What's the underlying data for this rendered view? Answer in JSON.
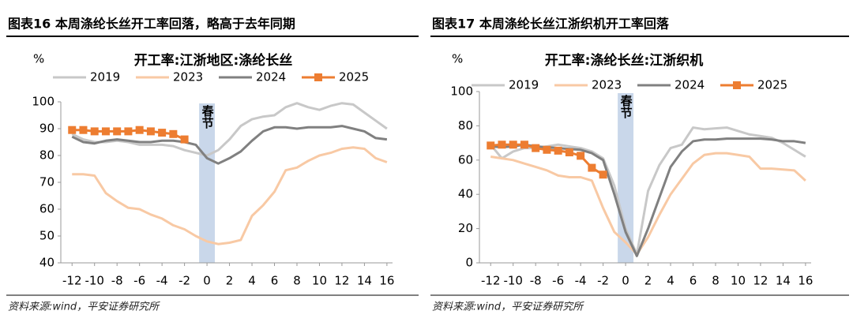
{
  "chart_data": [
    {
      "type": "line",
      "figure_title": "图表16   本周涤纶长丝开工率回落，略高于去年同期",
      "title": "开工率:江浙地区:涤纶长丝",
      "ylabel": "%",
      "source": "资料来源:wind，平安证券研究所",
      "annotation": {
        "text": "春节",
        "x": 0
      },
      "x": [
        -12,
        -11,
        -10,
        -9,
        -8,
        -7,
        -6,
        -5,
        -4,
        -3,
        -2,
        -1,
        0,
        1,
        2,
        3,
        4,
        5,
        6,
        7,
        8,
        9,
        10,
        11,
        12,
        13,
        14,
        15,
        16
      ],
      "xlim": [
        -13,
        16.5
      ],
      "xticks": [
        -12,
        -10,
        -8,
        -6,
        -4,
        -2,
        0,
        2,
        4,
        6,
        8,
        10,
        12,
        14,
        16
      ],
      "ylim": [
        40,
        100
      ],
      "yticks": [
        40,
        50,
        60,
        70,
        80,
        90,
        100
      ],
      "legend": "top",
      "series": [
        {
          "name": "2019",
          "color": "#c8c8c8",
          "values": [
            88,
            86,
            85,
            85,
            85.5,
            85,
            84,
            84,
            84,
            83.5,
            82,
            81,
            80,
            82,
            86,
            91,
            93.5,
            94.5,
            95,
            98,
            99.5,
            98,
            97,
            98.5,
            99.5,
            99,
            96,
            93,
            90
          ]
        },
        {
          "name": "2023",
          "color": "#f8c9a4",
          "values": [
            73,
            73,
            72.5,
            66,
            63,
            60.5,
            60,
            58,
            56.5,
            54,
            52.5,
            50,
            48,
            47,
            47.5,
            48.5,
            57.5,
            61.5,
            66.5,
            74.5,
            75.5,
            78,
            80,
            81,
            82.5,
            83,
            82.5,
            79,
            77.5
          ]
        },
        {
          "name": "2024",
          "color": "#808080",
          "values": [
            87,
            85,
            84.5,
            85.5,
            86,
            85.5,
            85,
            85,
            85.5,
            85.5,
            85,
            84,
            79,
            77,
            79,
            81.5,
            85.5,
            89,
            90.5,
            90.5,
            90,
            90.5,
            90.5,
            90.5,
            91,
            90,
            89,
            86.5,
            86
          ]
        },
        {
          "name": "2025",
          "color": "#ed7d31",
          "marker": "square",
          "values": [
            89.5,
            89.5,
            89,
            89,
            89,
            89,
            89.5,
            89,
            88.5,
            88,
            86,
            null,
            null,
            null,
            null,
            null,
            null,
            null,
            null,
            null,
            null,
            null,
            null,
            null,
            null,
            null,
            null,
            null,
            null
          ]
        }
      ]
    },
    {
      "type": "line",
      "figure_title": "图表17   本周涤纶长丝江浙织机开工率回落",
      "title": "开工率:涤纶长丝:江浙织机",
      "ylabel": "%",
      "source": "资料来源:wind，平安证券研究所",
      "annotation": {
        "text": "春节",
        "x": 0
      },
      "x": [
        -12,
        -11,
        -10,
        -9,
        -8,
        -7,
        -6,
        -5,
        -4,
        -3,
        -2,
        -1,
        0,
        1,
        2,
        3,
        4,
        5,
        6,
        7,
        8,
        9,
        10,
        11,
        12,
        13,
        14,
        15,
        16
      ],
      "xlim": [
        -13,
        16.5
      ],
      "xticks": [
        -12,
        -10,
        -8,
        -6,
        -4,
        -2,
        0,
        2,
        4,
        6,
        8,
        10,
        12,
        14,
        16
      ],
      "ylim": [
        0,
        100
      ],
      "yticks": [
        0,
        20,
        40,
        60,
        80,
        100
      ],
      "legend": "top",
      "series": [
        {
          "name": "2019",
          "color": "#c8c8c8",
          "values": [
            69,
            61,
            65,
            67,
            67,
            68,
            69,
            68,
            67,
            65,
            61,
            45,
            20,
            5,
            42,
            57,
            67,
            69,
            79,
            78,
            78.5,
            79,
            77,
            75,
            74,
            73,
            70,
            66,
            62
          ]
        },
        {
          "name": "2023",
          "color": "#f8c9a4",
          "values": [
            62,
            61,
            60,
            58,
            56,
            54,
            51,
            50,
            50,
            48,
            32,
            18,
            12,
            5,
            15,
            28,
            40,
            49,
            58,
            63,
            64,
            64,
            63,
            62,
            55,
            55,
            54.5,
            54,
            48
          ]
        },
        {
          "name": "2024",
          "color": "#808080",
          "values": [
            68,
            67.5,
            68,
            69,
            68,
            67.5,
            67,
            66.5,
            66,
            64,
            60,
            40,
            18,
            4,
            20,
            38,
            56,
            65,
            71,
            72,
            72,
            72.5,
            72.5,
            72.5,
            72.5,
            72,
            71,
            71,
            70
          ]
        },
        {
          "name": "2025",
          "color": "#ed7d31",
          "marker": "square",
          "values": [
            68.5,
            69,
            69,
            69,
            67,
            66,
            65.5,
            64.5,
            62.5,
            55.5,
            51.5,
            null,
            null,
            null,
            null,
            null,
            null,
            null,
            null,
            null,
            null,
            null,
            null,
            null,
            null,
            null,
            null,
            null,
            null
          ]
        }
      ]
    }
  ]
}
